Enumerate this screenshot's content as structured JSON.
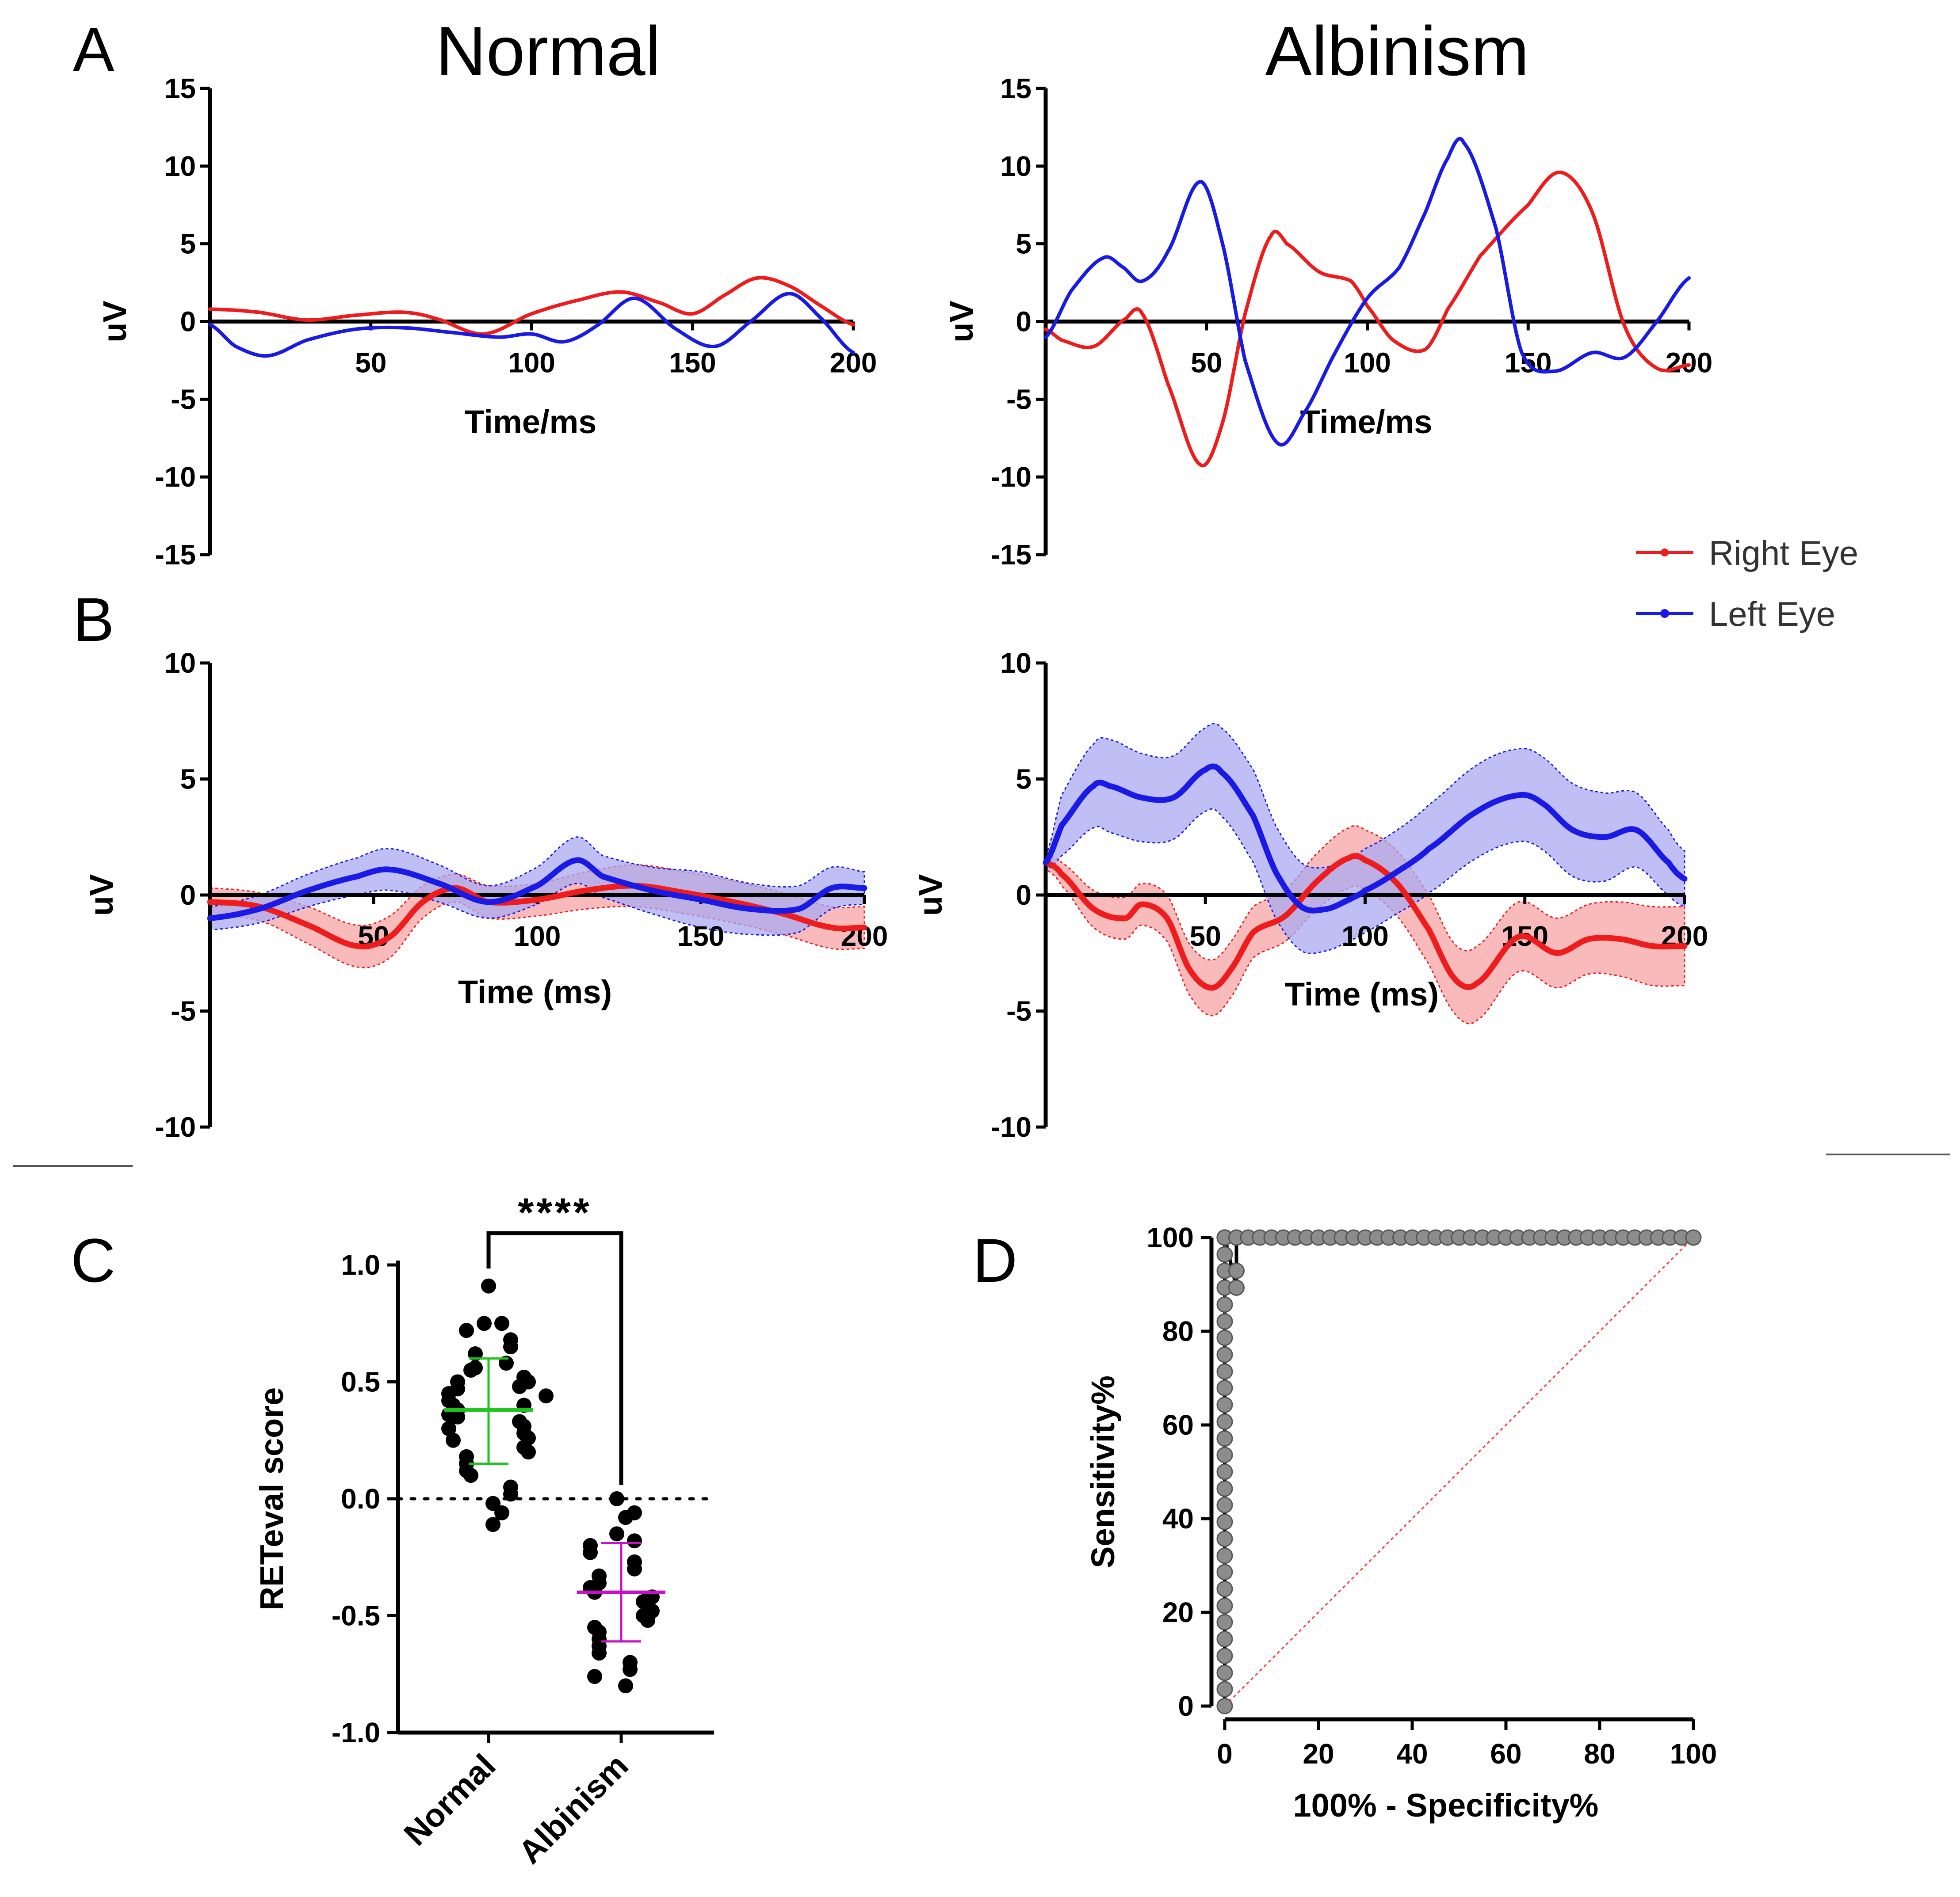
{
  "panel_letters": [
    "A",
    "B",
    "C",
    "D"
  ],
  "colors": {
    "right": "#ee1c1c",
    "left": "#1a1ae6",
    "right_band": "#f6a3a3",
    "left_band": "#aaaaf2",
    "green": "#1fc41f",
    "magenta": "#c413c4",
    "roc": "#8c8c8c",
    "diag": "#ee3333"
  },
  "legend": {
    "right": "Right Eye",
    "left": "Left Eye"
  },
  "chart_data": [
    {
      "id": "A-normal",
      "type": "line",
      "title": "Normal",
      "xlabel": "Time/ms",
      "ylabel": "uV",
      "xlim": [
        0,
        200
      ],
      "ylim": [
        -15,
        15
      ],
      "xticks": [
        50,
        100,
        150,
        200
      ],
      "yticks": [
        15,
        10,
        5,
        0,
        -5,
        -10,
        -15
      ],
      "series": [
        {
          "name": "Right Eye",
          "x": [
            0,
            15,
            30,
            45,
            60,
            70,
            85,
            100,
            115,
            128,
            140,
            150,
            160,
            170,
            180,
            190,
            200
          ],
          "y": [
            0.8,
            0.6,
            0.1,
            0.4,
            0.6,
            0.2,
            -0.8,
            0.5,
            1.4,
            1.9,
            1.2,
            0.5,
            1.7,
            2.8,
            2.3,
            1.0,
            -0.2
          ]
        },
        {
          "name": "Left Eye",
          "x": [
            0,
            8,
            18,
            30,
            45,
            60,
            75,
            90,
            100,
            110,
            120,
            132,
            145,
            157,
            168,
            180,
            190,
            200
          ],
          "y": [
            -0.2,
            -1.6,
            -2.2,
            -1.2,
            -0.5,
            -0.4,
            -0.7,
            -1.0,
            -0.8,
            -1.3,
            -0.3,
            1.5,
            -0.5,
            -1.6,
            0.0,
            1.8,
            0.2,
            -2.0
          ]
        }
      ]
    },
    {
      "id": "A-albinism",
      "type": "line",
      "title": "Albinism",
      "xlabel": "Time/ms",
      "ylabel": "uV",
      "xlim": [
        0,
        200
      ],
      "ylim": [
        -15,
        15
      ],
      "xticks": [
        50,
        100,
        150,
        200
      ],
      "yticks": [
        15,
        10,
        5,
        0,
        -5,
        -10,
        -15
      ],
      "series": [
        {
          "name": "Right Eye",
          "x": [
            0,
            5,
            15,
            25,
            30,
            38,
            48,
            55,
            62,
            70,
            75,
            85,
            95,
            100,
            108,
            118,
            125,
            135,
            150,
            160,
            170,
            180,
            190,
            200
          ],
          "y": [
            -0.5,
            -1.2,
            -1.6,
            0.2,
            0.5,
            -4.0,
            -9.2,
            -6.5,
            0.5,
            5.5,
            5.0,
            3.2,
            2.6,
            1.0,
            -1.2,
            -1.8,
            0.8,
            4.2,
            7.5,
            9.6,
            7.0,
            -0.3,
            -3.0,
            -2.8
          ]
        },
        {
          "name": "Left Eye",
          "x": [
            0,
            8,
            18,
            24,
            30,
            38,
            48,
            55,
            62,
            72,
            80,
            90,
            100,
            110,
            118,
            125,
            130,
            140,
            148,
            158,
            170,
            180,
            190,
            200
          ],
          "y": [
            -1.0,
            2.0,
            4.1,
            3.5,
            2.6,
            4.5,
            9.0,
            5.0,
            -2.5,
            -7.8,
            -6.0,
            -2.0,
            1.5,
            3.5,
            7.0,
            10.5,
            11.5,
            6.0,
            -2.0,
            -3.2,
            -2.0,
            -2.3,
            0.0,
            2.8
          ]
        }
      ]
    },
    {
      "id": "B-normal",
      "type": "area",
      "xlabel": "Time (ms)",
      "ylabel": "uV",
      "xlim": [
        0,
        200
      ],
      "ylim": [
        -10,
        10
      ],
      "xticks": [
        50,
        100,
        150,
        "200"
      ],
      "yticks": [
        10,
        5,
        0,
        -5,
        -10
      ],
      "series": [
        {
          "name": "Right Eye",
          "x": [
            0,
            15,
            30,
            45,
            55,
            65,
            75,
            85,
            100,
            115,
            130,
            145,
            160,
            175,
            190,
            200
          ],
          "y": [
            -0.3,
            -0.5,
            -1.3,
            -2.2,
            -1.8,
            -0.3,
            0.3,
            -0.3,
            -0.2,
            0.2,
            0.4,
            0.1,
            -0.3,
            -0.8,
            -1.4,
            -1.4
          ],
          "err": [
            0.6,
            0.6,
            0.8,
            0.9,
            0.9,
            0.7,
            0.6,
            0.7,
            0.7,
            0.8,
            0.9,
            0.9,
            0.9,
            0.9,
            0.9,
            0.9
          ]
        },
        {
          "name": "Left Eye",
          "x": [
            0,
            15,
            30,
            45,
            55,
            70,
            85,
            100,
            112,
            120,
            135,
            150,
            165,
            180,
            190,
            200
          ],
          "y": [
            -1.0,
            -0.6,
            0.2,
            0.8,
            1.1,
            0.5,
            -0.3,
            0.4,
            1.5,
            0.8,
            0.2,
            -0.2,
            -0.6,
            -0.6,
            0.3,
            0.3
          ],
          "err": [
            0.5,
            0.6,
            0.7,
            0.8,
            0.9,
            0.8,
            0.7,
            0.8,
            1.0,
            0.9,
            1.0,
            1.2,
            1.1,
            1.0,
            0.9,
            0.7
          ]
        }
      ]
    },
    {
      "id": "B-albinism",
      "type": "area",
      "xlabel": "Time (ms)",
      "ylabel": "uV",
      "xlim": [
        0,
        200
      ],
      "ylim": [
        -10,
        10
      ],
      "xticks": [
        50,
        100,
        150,
        200
      ],
      "yticks": [
        10,
        5,
        0,
        -5,
        -10
      ],
      "series": [
        {
          "name": "Right Eye",
          "x": [
            0,
            5,
            15,
            25,
            30,
            38,
            45,
            52,
            58,
            65,
            75,
            85,
            95,
            100,
            110,
            120,
            128,
            135,
            148,
            160,
            170,
            180,
            190,
            200
          ],
          "y": [
            1.4,
            0.9,
            -0.6,
            -1.0,
            -0.4,
            -1.0,
            -3.2,
            -4.0,
            -3.2,
            -1.6,
            -0.9,
            0.6,
            1.6,
            1.5,
            0.5,
            -1.5,
            -3.6,
            -3.8,
            -1.8,
            -2.5,
            -1.9,
            -1.9,
            -2.2,
            -2.2
          ],
          "err": [
            0.3,
            0.5,
            0.8,
            0.9,
            0.9,
            1.0,
            1.1,
            1.2,
            1.2,
            1.1,
            1.1,
            1.2,
            1.3,
            1.3,
            1.4,
            1.5,
            1.5,
            1.6,
            1.5,
            1.5,
            1.5,
            1.6,
            1.7,
            1.7
          ]
        },
        {
          "name": "Left Eye",
          "x": [
            0,
            5,
            15,
            20,
            30,
            40,
            50,
            55,
            65,
            72,
            80,
            88,
            95,
            100,
            110,
            120,
            135,
            148,
            155,
            165,
            175,
            185,
            195,
            200
          ],
          "y": [
            1.4,
            3.0,
            4.7,
            4.7,
            4.2,
            4.2,
            5.4,
            5.3,
            3.4,
            1.0,
            -0.5,
            -0.6,
            -0.2,
            0.2,
            1.0,
            2.0,
            3.6,
            4.3,
            4.0,
            2.8,
            2.5,
            2.8,
            1.4,
            0.7
          ],
          "err": [
            0.3,
            1.3,
            1.8,
            2.0,
            1.9,
            1.8,
            1.8,
            1.9,
            2.0,
            2.0,
            1.9,
            1.8,
            1.8,
            1.8,
            1.8,
            1.9,
            2.0,
            2.0,
            2.0,
            2.0,
            1.9,
            1.6,
            1.4,
            1.2
          ]
        }
      ]
    },
    {
      "id": "C",
      "type": "scatter",
      "ylabel": "RETeval score",
      "ylim": [
        -1.0,
        1.0
      ],
      "yticks": [
        "1.0",
        "0.5",
        "0.0",
        "-0.5",
        "-1.0"
      ],
      "categories": [
        "Normal",
        "Albinism"
      ],
      "significance": "****",
      "groups": [
        {
          "name": "Normal",
          "mean": 0.38,
          "sd_low": 0.15,
          "sd_high": 0.6,
          "values": [
            0.91,
            0.75,
            0.75,
            0.72,
            0.68,
            0.65,
            0.62,
            0.58,
            0.56,
            0.55,
            0.52,
            0.5,
            0.5,
            0.48,
            0.47,
            0.45,
            0.44,
            0.42,
            0.4,
            0.4,
            0.38,
            0.36,
            0.35,
            0.33,
            0.31,
            0.3,
            0.28,
            0.26,
            0.25,
            0.22,
            0.2,
            0.18,
            0.15,
            0.12,
            0.1,
            0.05,
            0.02,
            -0.02,
            -0.06,
            -0.11
          ]
        },
        {
          "name": "Albinism",
          "mean": -0.4,
          "sd_low": -0.61,
          "sd_high": -0.19,
          "values": [
            0.0,
            -0.06,
            -0.08,
            -0.15,
            -0.18,
            -0.2,
            -0.23,
            -0.27,
            -0.3,
            -0.33,
            -0.36,
            -0.38,
            -0.4,
            -0.42,
            -0.44,
            -0.46,
            -0.48,
            -0.5,
            -0.52,
            -0.55,
            -0.57,
            -0.6,
            -0.63,
            -0.66,
            -0.7,
            -0.73,
            -0.76,
            -0.8
          ]
        }
      ]
    },
    {
      "id": "D",
      "type": "line",
      "xlabel": "100% - Specificity%",
      "ylabel": "Sensitivity%",
      "xlim": [
        0,
        100
      ],
      "ylim": [
        0,
        100
      ],
      "xticks": [
        0,
        20,
        40,
        60,
        80,
        100
      ],
      "yticks": [
        100,
        80,
        60,
        40,
        20,
        0
      ],
      "roc": {
        "x": [
          0,
          0,
          0,
          0,
          0,
          0,
          0,
          0,
          0,
          0,
          0,
          0,
          0,
          0,
          0,
          0,
          0,
          0,
          0,
          0,
          0,
          0,
          0,
          0,
          0,
          0,
          0,
          0,
          0,
          0,
          0,
          0,
          0,
          0,
          0,
          0,
          2.5,
          2.5,
          2.5,
          5,
          7.5,
          10,
          12.5,
          15,
          17.5,
          20,
          22.5,
          25,
          27.5,
          30,
          32.5,
          35,
          37.5,
          40,
          42.5,
          45,
          47.5,
          50,
          52.5,
          55,
          57.5,
          60,
          62.5,
          65,
          67.5,
          70,
          72.5,
          75,
          77.5,
          80,
          82.5,
          85,
          87.5,
          90,
          92.5,
          95,
          97.5,
          100
        ],
        "y": [
          0,
          3.6,
          7.1,
          10.7,
          14.3,
          17.9,
          21.4,
          25,
          28.6,
          32.1,
          35.7,
          39.3,
          42.9,
          46.4,
          50,
          53.6,
          57.1,
          60.7,
          64.3,
          67.9,
          71.4,
          75,
          78.6,
          82.1,
          85.7,
          89.3,
          92.9,
          96.4,
          100,
          100,
          100,
          100,
          100,
          100,
          100,
          100,
          89.3,
          92.9,
          100,
          100,
          100,
          100,
          100,
          100,
          100,
          100,
          100,
          100,
          100,
          100,
          100,
          100,
          100,
          100,
          100,
          100,
          100,
          100,
          100,
          100,
          100,
          100,
          100,
          100,
          100,
          100,
          100,
          100,
          100,
          100,
          100,
          100,
          100,
          100,
          100,
          100,
          100,
          100
        ]
      },
      "diagonal": {
        "x": [
          0,
          100
        ],
        "y": [
          0,
          100
        ]
      }
    }
  ]
}
